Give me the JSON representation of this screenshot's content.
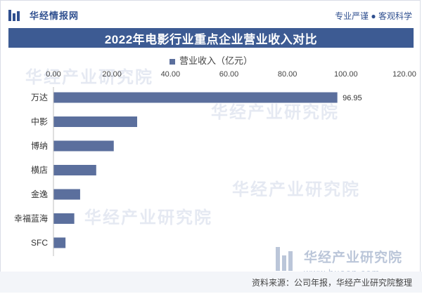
{
  "header": {
    "logo_text": "华经情报网",
    "slogan": "专业严谨 ● 客观科学"
  },
  "footer": {
    "source": "资料来源：公司年报，华经产业研究院整理"
  },
  "watermark": {
    "name": "华经产业研究院",
    "url": "www.huaon.com"
  },
  "colors": {
    "accent": "#3d5b93",
    "bar": "#5b6f9d"
  },
  "chart_data": {
    "type": "bar",
    "orientation": "horizontal",
    "title": "2022年电影行业重点企业营业收入对比",
    "series": [
      {
        "name": "营业收入（亿元）",
        "values": [
          96.95,
          28.5,
          20.5,
          14.5,
          9.0,
          7.0,
          4.0
        ]
      }
    ],
    "categories": [
      "万达",
      "中影",
      "博纳",
      "横店",
      "金逸",
      "幸福蓝海",
      "SFC"
    ],
    "data_labels": [
      "96.95"
    ],
    "xlim": [
      0,
      120
    ],
    "x_ticks": [
      "0.00",
      "20.00",
      "40.00",
      "60.00",
      "80.00",
      "100.00",
      "120.00"
    ],
    "grid": false,
    "legend_position": "top"
  }
}
